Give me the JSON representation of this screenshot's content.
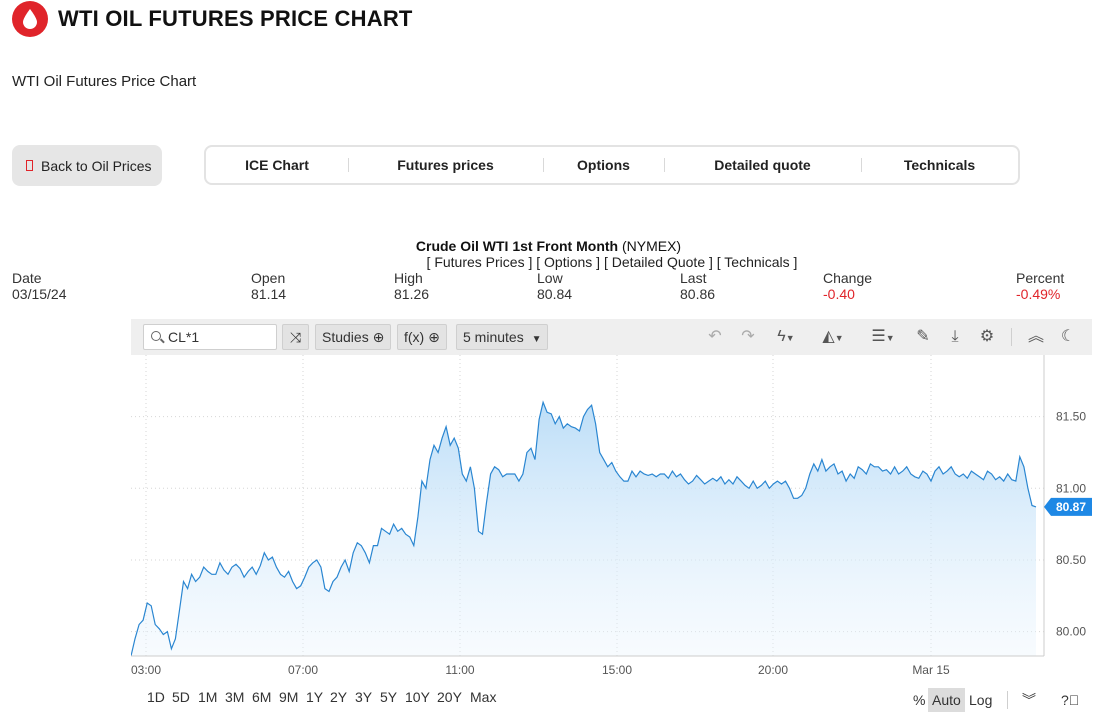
{
  "header": {
    "title": "WTI OIL FUTURES PRICE CHART",
    "subtitle": "WTI Oil Futures Price Chart",
    "brand_color": "#e0242a"
  },
  "back_button": {
    "label": "Back to Oil Prices"
  },
  "nav_tabs": [
    "ICE Chart",
    "Futures prices",
    "Options",
    "Detailed quote",
    "Technicals"
  ],
  "quote": {
    "name": "Crude Oil WTI 1st Front Month",
    "exchange": "(NYMEX)",
    "links": "[ Futures Prices ] [ Options ] [ Detailed Quote ] [ Technicals ]",
    "columns": [
      {
        "label": "Date",
        "value": "03/15/24",
        "neg": false
      },
      {
        "label": "Open",
        "value": "81.14",
        "neg": false
      },
      {
        "label": "High",
        "value": "81.26",
        "neg": false
      },
      {
        "label": "Low",
        "value": "80.84",
        "neg": false
      },
      {
        "label": "Last",
        "value": "80.86",
        "neg": false
      },
      {
        "label": "Change",
        "value": "-0.40",
        "neg": true
      },
      {
        "label": "Percent",
        "value": "-0.49%",
        "neg": true
      }
    ]
  },
  "toolbar": {
    "symbol": "CL*1",
    "studies_label": "Studies",
    "fx_label": "f(x)",
    "interval_label": "5 minutes",
    "icons": [
      "undo-icon",
      "redo-icon",
      "lightning-icon",
      "chart-style-icon",
      "layout-icon",
      "pencil-icon",
      "download-icon",
      "gear-icon",
      "collapse-icon",
      "moon-icon"
    ]
  },
  "chart_data": {
    "type": "area",
    "x_tick_labels": [
      "03:00",
      "07:00",
      "11:00",
      "15:00",
      "20:00",
      "Mar 15"
    ],
    "y_tick_labels": [
      "81.50",
      "81.00",
      "80.50",
      "80.00"
    ],
    "y_ticks": [
      81.5,
      81.0,
      80.5,
      80.0
    ],
    "ylim": [
      79.83,
      81.93
    ],
    "last_price_label": "80.87",
    "last_price": 80.87,
    "line_color": "#2a86d1",
    "values": [
      79.83,
      79.95,
      80.05,
      80.08,
      80.2,
      80.18,
      80.05,
      80.02,
      79.98,
      80.0,
      79.88,
      79.95,
      80.15,
      80.35,
      80.3,
      80.4,
      80.35,
      80.38,
      80.45,
      80.42,
      80.4,
      80.4,
      80.48,
      80.43,
      80.4,
      80.45,
      80.47,
      80.44,
      80.38,
      80.42,
      80.45,
      80.4,
      80.46,
      80.55,
      80.5,
      80.52,
      80.45,
      80.4,
      80.38,
      80.42,
      80.35,
      80.3,
      80.32,
      80.38,
      80.45,
      80.48,
      80.5,
      80.45,
      80.3,
      80.28,
      80.35,
      80.38,
      80.45,
      80.5,
      80.42,
      80.55,
      80.62,
      80.6,
      80.55,
      80.48,
      80.6,
      80.6,
      80.72,
      80.7,
      80.68,
      80.75,
      80.7,
      80.72,
      80.68,
      80.66,
      80.6,
      80.8,
      81.05,
      81.0,
      81.2,
      81.3,
      81.25,
      81.35,
      81.43,
      81.3,
      81.35,
      81.28,
      81.1,
      81.05,
      81.15,
      81.0,
      80.7,
      80.68,
      80.9,
      81.1,
      81.15,
      81.13,
      81.08,
      81.1,
      81.1,
      81.1,
      81.05,
      81.1,
      81.25,
      81.28,
      81.2,
      81.48,
      81.6,
      81.53,
      81.52,
      81.45,
      81.5,
      81.42,
      81.45,
      81.43,
      81.42,
      81.4,
      81.5,
      81.55,
      81.58,
      81.45,
      81.25,
      81.2,
      81.15,
      81.18,
      81.12,
      81.08,
      81.05,
      81.05,
      81.12,
      81.08,
      81.12,
      81.1,
      81.09,
      81.1,
      81.08,
      81.1,
      81.1,
      81.07,
      81.12,
      81.08,
      81.1,
      81.06,
      81.03,
      81.05,
      81.09,
      81.06,
      81.03,
      81.05,
      81.07,
      81.05,
      81.08,
      81.03,
      81.06,
      81.03,
      81.08,
      81.05,
      81.02,
      81.0,
      81.05,
      81.0,
      81.02,
      81.05,
      81.0,
      81.03,
      81.05,
      81.03,
      81.05,
      81.0,
      80.93,
      80.93,
      80.95,
      81.0,
      81.1,
      81.17,
      81.12,
      81.2,
      81.12,
      81.15,
      81.17,
      81.1,
      81.12,
      81.05,
      81.1,
      81.07,
      81.15,
      81.13,
      81.1,
      81.17,
      81.15,
      81.15,
      81.12,
      81.13,
      81.1,
      81.15,
      81.1,
      81.12,
      81.15,
      81.1,
      81.08,
      81.07,
      81.12,
      81.1,
      81.05,
      81.12,
      81.15,
      81.1,
      81.12,
      81.15,
      81.1,
      81.08,
      81.1,
      81.07,
      81.12,
      81.1,
      81.08,
      81.06,
      81.12,
      81.1,
      81.06,
      81.08,
      81.05,
      81.1,
      81.06,
      81.05,
      81.22,
      81.15,
      81.0,
      80.88,
      80.87
    ]
  },
  "range_buttons": [
    "1D",
    "5D",
    "1M",
    "3M",
    "6M",
    "9M",
    "1Y",
    "2Y",
    "3Y",
    "5Y",
    "10Y",
    "20Y",
    "Max"
  ],
  "scale_buttons": [
    "%",
    "Auto",
    "Log"
  ]
}
